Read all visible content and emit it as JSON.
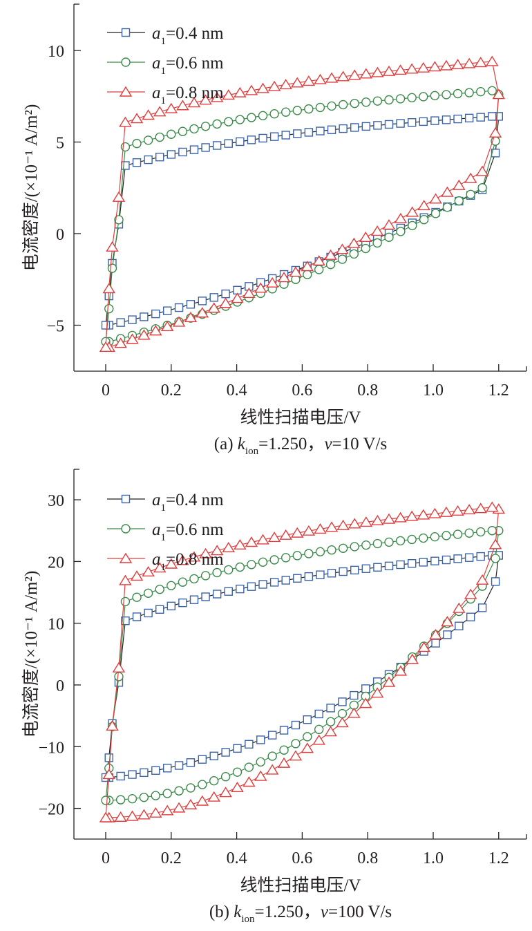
{
  "chart_data": [
    {
      "id": "a",
      "type": "line",
      "caption": {
        "prefix": "(a) ",
        "k": "k",
        "k_sub": "ion",
        "mid": "=1.250，",
        "v": "v",
        "rest": "=10 V/s"
      },
      "xlabel": "线性扫描电压/V",
      "ylabel": "电流密度/(×10⁻¹ A/m²)",
      "xlim": [
        0,
        1.2
      ],
      "ylim": [
        -7.5,
        12.5
      ],
      "xticks": [
        0,
        0.2,
        0.4,
        0.6,
        0.8,
        1.0,
        1.2
      ],
      "xtick_labels": [
        "0",
        "0.2",
        "0.4",
        "0.6",
        "0.8",
        "1.0",
        "1.2"
      ],
      "yticks": [
        -5,
        0,
        5,
        10
      ],
      "ytick_labels": [
        "−5",
        "0",
        "5",
        "10"
      ],
      "legend": {
        "position": "top-left",
        "entries": [
          {
            "label_var": "a",
            "label_sub": "1",
            "label_rest": "=0.4 nm"
          },
          {
            "label_var": "a",
            "label_sub": "1",
            "label_rest": "=0.6 nm"
          },
          {
            "label_var": "a",
            "label_sub": "1",
            "label_rest": "=0.8 nm"
          }
        ]
      },
      "series": [
        {
          "name": "a1=0.4 nm",
          "marker": "square",
          "line_color": "#231f20",
          "marker_color": "#3b63a8",
          "forward": {
            "y_start": -5.0,
            "y_mid": -2.0,
            "y_end": 2.4,
            "y_final": 6.4
          },
          "reverse": {
            "y_start": 6.4,
            "y_mid": 4.3,
            "y_end": -3.4
          }
        },
        {
          "name": "a1=0.6 nm",
          "marker": "circle",
          "line_color": "#3a8a4a",
          "marker_color": "#3a8a4a",
          "forward": {
            "y_start": -5.9,
            "y_mid": -2.5,
            "y_end": 2.5,
            "y_final": 7.6
          },
          "reverse": {
            "y_start": 7.8,
            "y_mid": 5.4,
            "y_end": -4.1
          }
        },
        {
          "name": "a1=0.8 nm",
          "marker": "triangle",
          "line_color": "#e03c3c",
          "marker_color": "#e03c3c",
          "forward": {
            "y_start": -6.2,
            "y_mid": -2.1,
            "y_end": 3.4,
            "y_final": 7.6
          },
          "reverse": {
            "y_start": 9.4,
            "y_mid": 6.8,
            "y_end": -3.0
          }
        }
      ]
    },
    {
      "id": "b",
      "type": "line",
      "caption": {
        "prefix": "(b) ",
        "k": "k",
        "k_sub": "ion",
        "mid": "=1.250，",
        "v": "v",
        "rest": "=100 V/s"
      },
      "xlabel": "线性扫描电压/V",
      "ylabel": "电流密度/(×10⁻¹ A/m²)",
      "xlim": [
        0,
        1.2
      ],
      "ylim": [
        -25,
        35
      ],
      "xticks": [
        0,
        0.2,
        0.4,
        0.6,
        0.8,
        1.0,
        1.2
      ],
      "xtick_labels": [
        "0",
        "0.2",
        "0.4",
        "0.6",
        "0.8",
        "1.0",
        "1.2"
      ],
      "yticks": [
        -20,
        -10,
        0,
        10,
        20,
        30
      ],
      "ytick_labels": [
        "−20",
        "−10",
        "0",
        "10",
        "20",
        "30"
      ],
      "legend": {
        "position": "top-left",
        "entries": [
          {
            "label_var": "a",
            "label_sub": "1",
            "label_rest": "=0.4 nm"
          },
          {
            "label_var": "a",
            "label_sub": "1",
            "label_rest": "=0.6 nm"
          },
          {
            "label_var": "a",
            "label_sub": "1",
            "label_rest": "=0.8 nm"
          }
        ]
      },
      "series": [
        {
          "name": "a1=0.4 nm",
          "marker": "square",
          "line_color": "#231f20",
          "marker_color": "#3b63a8",
          "forward": {
            "y_start": -15.0,
            "y_mid": -6.5,
            "y_end": 12.5,
            "y_final": 21.0
          },
          "reverse": {
            "y_start": 21.0,
            "y_mid": 12.7,
            "y_end": -11.8
          }
        },
        {
          "name": "a1=0.6 nm",
          "marker": "circle",
          "line_color": "#3a8a4a",
          "marker_color": "#3a8a4a",
          "forward": {
            "y_start": -18.7,
            "y_mid": -9.5,
            "y_end": 16.0,
            "y_final": 25.0
          },
          "reverse": {
            "y_start": 25.0,
            "y_mid": 16.0,
            "y_end": -13.5
          }
        },
        {
          "name": "a1=0.8 nm",
          "marker": "triangle",
          "line_color": "#e03c3c",
          "marker_color": "#e03c3c",
          "forward": {
            "y_start": -21.5,
            "y_mid": -11.5,
            "y_end": 17.0,
            "y_final": 28.5
          },
          "reverse": {
            "y_start": 28.8,
            "y_mid": 19.5,
            "y_end": -14.5
          }
        }
      ]
    }
  ]
}
